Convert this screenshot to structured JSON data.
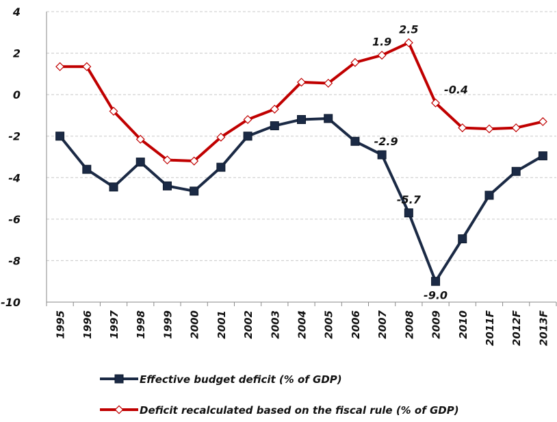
{
  "chart_data": {
    "type": "line",
    "categories": [
      "1995",
      "1996",
      "1997",
      "1998",
      "1999",
      "2000",
      "2001",
      "2002",
      "2003",
      "2004",
      "2005",
      "2006",
      "2007",
      "2008",
      "2009",
      "2010",
      "2011F",
      "2012F",
      "2013F"
    ],
    "series": [
      {
        "name": "Effective budget deficit (% of GDP)",
        "color": "#1b2a45",
        "marker": "square",
        "values": [
          -2.0,
          -3.6,
          -4.45,
          -3.25,
          -4.4,
          -4.65,
          -3.5,
          -2.0,
          -1.5,
          -1.2,
          -1.15,
          -2.25,
          -2.9,
          -5.7,
          -9.0,
          -6.95,
          -4.85,
          -3.7,
          -2.95
        ],
        "value_labels": [
          null,
          null,
          null,
          null,
          null,
          null,
          null,
          null,
          null,
          null,
          null,
          null,
          "-2.9",
          "-5.7",
          "-9.0",
          null,
          null,
          null,
          null
        ]
      },
      {
        "name": "Deficit recalculated based on the fiscal rule (% of GDP)",
        "color": "#c00000",
        "marker": "diamond",
        "values": [
          1.35,
          1.35,
          -0.8,
          -2.15,
          -3.15,
          -3.2,
          -2.05,
          -1.2,
          -0.7,
          0.6,
          0.55,
          1.55,
          1.9,
          2.5,
          -0.4,
          -1.6,
          -1.65,
          -1.6,
          -1.3
        ],
        "value_labels": [
          null,
          null,
          null,
          null,
          null,
          null,
          null,
          null,
          null,
          null,
          null,
          null,
          "1.9",
          "2.5",
          "-0.4",
          null,
          null,
          null,
          null
        ]
      }
    ],
    "ylim": [
      -10,
      4
    ],
    "yticks": [
      -10,
      -8,
      -6,
      -4,
      -2,
      0,
      2,
      4
    ],
    "grid": true,
    "legend": "bottom"
  }
}
